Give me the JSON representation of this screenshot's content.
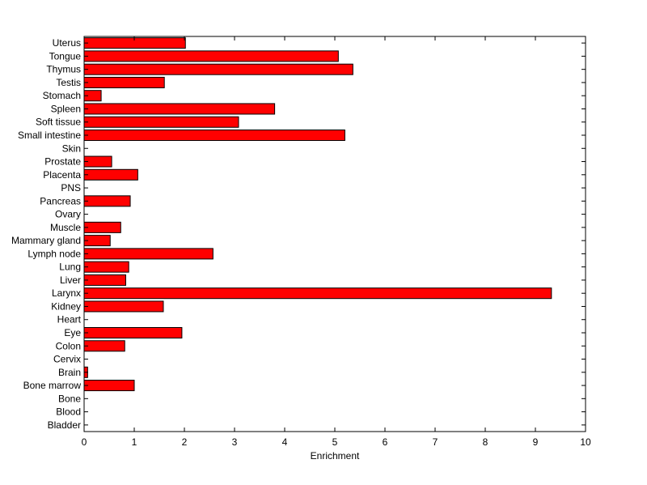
{
  "chart_data": {
    "type": "bar",
    "orientation": "horizontal",
    "title": "",
    "xlabel": "Enrichment",
    "ylabel": "",
    "xlim": [
      0,
      10
    ],
    "xticks": [
      "0",
      "1",
      "2",
      "3",
      "4",
      "5",
      "6",
      "7",
      "8",
      "9",
      "10"
    ],
    "grid": false,
    "bar_color": "#ff0000",
    "bar_edge_color": "#000000",
    "categories": [
      "Bladder",
      "Blood",
      "Bone",
      "Bone marrow",
      "Brain",
      "Cervix",
      "Colon",
      "Eye",
      "Heart",
      "Kidney",
      "Larynx",
      "Liver",
      "Lung",
      "Lymph node",
      "Mammary gland",
      "Muscle",
      "Ovary",
      "Pancreas",
      "PNS",
      "Placenta",
      "Prostate",
      "Skin",
      "Small intestine",
      "Soft tissue",
      "Spleen",
      "Stomach",
      "Testis",
      "Thymus",
      "Tongue",
      "Uterus"
    ],
    "values": [
      0,
      0,
      0,
      1.0,
      0.07,
      0,
      0.81,
      1.95,
      0,
      1.58,
      9.32,
      0.83,
      0.89,
      2.57,
      0.52,
      0.73,
      0,
      0.92,
      0,
      1.07,
      0.55,
      0,
      5.2,
      3.08,
      3.8,
      0.34,
      1.6,
      5.36,
      5.07,
      2.02
    ]
  }
}
